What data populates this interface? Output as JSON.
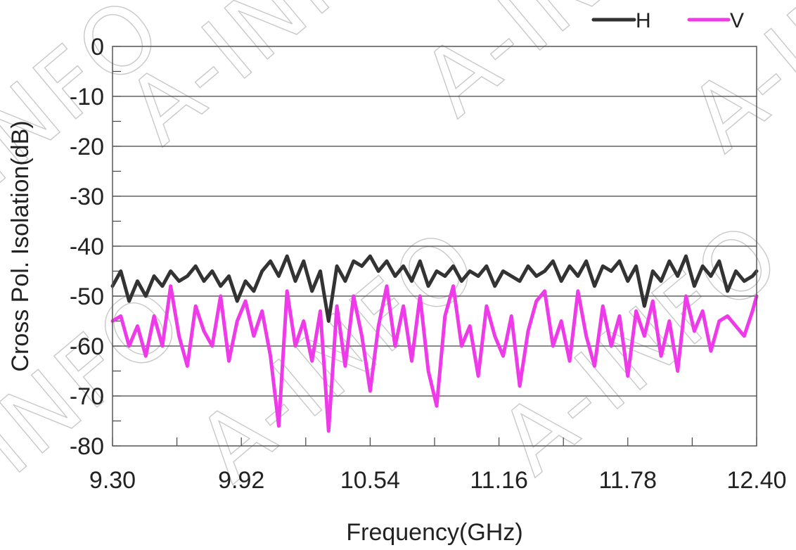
{
  "watermark": "A-INFO",
  "chart_data": {
    "type": "line",
    "title": "",
    "xlabel": "Frequency(GHz)",
    "ylabel": "Cross Pol. Isolation(dB)",
    "xlim": [
      9.3,
      12.4
    ],
    "ylim": [
      -80,
      0
    ],
    "xticks": [
      "9.30",
      "9.92",
      "10.54",
      "11.16",
      "11.78",
      "12.40"
    ],
    "yticks": [
      "0",
      "-10",
      "-20",
      "-30",
      "-40",
      "-50",
      "-60",
      "-70",
      "-80"
    ],
    "grid": "horizontal",
    "legend": "top-right",
    "series": [
      {
        "name": "H",
        "color": "#333333",
        "x": [
          9.3,
          9.34,
          9.38,
          9.42,
          9.46,
          9.5,
          9.54,
          9.58,
          9.62,
          9.66,
          9.7,
          9.74,
          9.78,
          9.82,
          9.86,
          9.9,
          9.94,
          9.98,
          10.02,
          10.06,
          10.1,
          10.14,
          10.18,
          10.22,
          10.26,
          10.3,
          10.34,
          10.38,
          10.42,
          10.46,
          10.5,
          10.54,
          10.58,
          10.62,
          10.66,
          10.7,
          10.74,
          10.78,
          10.82,
          10.86,
          10.9,
          10.94,
          10.98,
          11.02,
          11.06,
          11.1,
          11.14,
          11.18,
          11.22,
          11.26,
          11.3,
          11.34,
          11.38,
          11.42,
          11.46,
          11.5,
          11.54,
          11.58,
          11.62,
          11.66,
          11.7,
          11.74,
          11.78,
          11.82,
          11.86,
          11.9,
          11.94,
          11.98,
          12.02,
          12.06,
          12.1,
          12.14,
          12.18,
          12.22,
          12.26,
          12.3,
          12.34,
          12.38,
          12.4
        ],
        "values": [
          -48,
          -45,
          -51,
          -47,
          -50,
          -46,
          -48,
          -45,
          -47,
          -46,
          -44,
          -47,
          -45,
          -48,
          -46,
          -51,
          -47,
          -49,
          -45,
          -43,
          -46,
          -42,
          -47,
          -43,
          -49,
          -45,
          -55,
          -44,
          -47,
          -43,
          -44,
          -42,
          -45,
          -43,
          -46,
          -44,
          -47,
          -43,
          -48,
          -45,
          -46,
          -44,
          -47,
          -45,
          -46,
          -44,
          -48,
          -45,
          -46,
          -47,
          -44,
          -46,
          -45,
          -43,
          -47,
          -44,
          -46,
          -43,
          -48,
          -44,
          -45,
          -43,
          -47,
          -44,
          -52,
          -45,
          -47,
          -43,
          -46,
          -42,
          -48,
          -44,
          -46,
          -43,
          -49,
          -45,
          -47,
          -46,
          -45
        ],
        "range": "approximately -55 to -41 dB"
      },
      {
        "name": "V",
        "color": "#ee3ae8",
        "x": [
          9.3,
          9.34,
          9.38,
          9.42,
          9.46,
          9.5,
          9.54,
          9.58,
          9.62,
          9.66,
          9.7,
          9.74,
          9.78,
          9.82,
          9.86,
          9.9,
          9.94,
          9.98,
          10.02,
          10.06,
          10.1,
          10.14,
          10.18,
          10.22,
          10.26,
          10.3,
          10.34,
          10.38,
          10.42,
          10.46,
          10.5,
          10.54,
          10.58,
          10.62,
          10.66,
          10.7,
          10.74,
          10.78,
          10.82,
          10.86,
          10.9,
          10.94,
          10.98,
          11.02,
          11.06,
          11.1,
          11.14,
          11.18,
          11.22,
          11.26,
          11.3,
          11.34,
          11.38,
          11.42,
          11.46,
          11.5,
          11.54,
          11.58,
          11.62,
          11.66,
          11.7,
          11.74,
          11.78,
          11.82,
          11.86,
          11.9,
          11.94,
          11.98,
          12.02,
          12.06,
          12.1,
          12.14,
          12.18,
          12.22,
          12.26,
          12.3,
          12.34,
          12.38,
          12.4
        ],
        "values": [
          -55,
          -54,
          -60,
          -56,
          -62,
          -54,
          -60,
          -48,
          -58,
          -64,
          -52,
          -57,
          -60,
          -50,
          -63,
          -55,
          -51,
          -58,
          -53,
          -62,
          -76,
          -49,
          -60,
          -55,
          -63,
          -53,
          -77,
          -52,
          -64,
          -50,
          -58,
          -69,
          -56,
          -48,
          -60,
          -52,
          -63,
          -50,
          -65,
          -72,
          -54,
          -48,
          -60,
          -56,
          -66,
          -52,
          -58,
          -62,
          -54,
          -68,
          -57,
          -51,
          -49,
          -60,
          -55,
          -63,
          -49,
          -58,
          -64,
          -52,
          -60,
          -54,
          -66,
          -53,
          -58,
          -51,
          -62,
          -55,
          -65,
          -50,
          -57,
          -53,
          -61,
          -55,
          -54,
          -56,
          -58,
          -53,
          -50
        ],
        "range": "approximately -77 to -47 dB"
      }
    ]
  }
}
